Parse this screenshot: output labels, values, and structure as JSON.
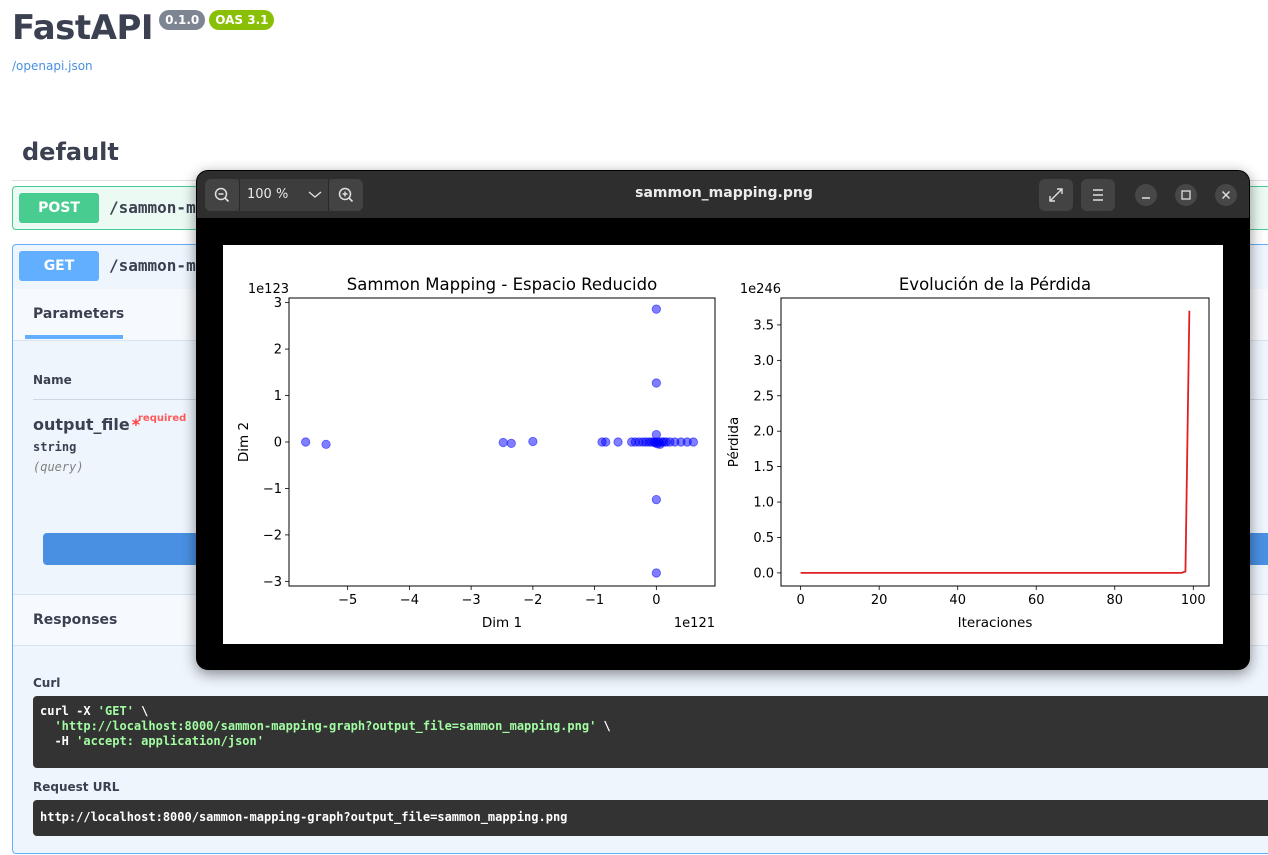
{
  "swagger": {
    "app_title": "FastAPI",
    "version_badge": "0.1.0",
    "oas_badge": "OAS 3.1",
    "openapi_link": "/openapi.json",
    "section_tag": "default",
    "operations": [
      {
        "method": "POST",
        "path": "/sammon-ma"
      },
      {
        "method": "GET",
        "path": "/sammon-ma"
      }
    ],
    "parameters_tab": "Parameters",
    "name_column": "Name",
    "param": {
      "name": "output_file",
      "star": "*",
      "required": "required",
      "type": "string",
      "in": "(query)"
    },
    "responses_title": "Responses",
    "curl_label": "Curl",
    "curl": {
      "l1_cmd": "curl -X ",
      "l1_method": "'GET'",
      "l1_tail": " \\",
      "l2_url": "'http://localhost:8000/sammon-mapping-graph?output_file=sammon_mapping.png'",
      "l2_tail": " \\",
      "l3_flag": "  -H ",
      "l3_header": "'accept: application/json'"
    },
    "request_url_label": "Request URL",
    "request_url": "http://localhost:8000/sammon-mapping-graph?output_file=sammon_mapping.png",
    "colors": {
      "post": "#49cc90",
      "get": "#61affe",
      "execute": "#4990e2"
    }
  },
  "viewer": {
    "title": "sammon_mapping.png",
    "zoom": "100 %",
    "icons": [
      "zoom-out-icon",
      "chevron-down-icon",
      "zoom-in-icon",
      "fullscreen-icon",
      "menu-icon",
      "minimize-icon",
      "maximize-icon",
      "close-icon"
    ]
  },
  "chart_data": [
    {
      "type": "scatter",
      "title": "Sammon Mapping - Espacio Reducido",
      "xlabel": "Dim 1",
      "ylabel": "Dim 2",
      "x_offset_text": "1e121",
      "y_offset_text": "1e123",
      "xlim": [
        -5.95,
        0.95
      ],
      "ylim": [
        -3.1,
        3.1
      ],
      "xticks": [
        -5,
        -4,
        -3,
        -2,
        -1,
        0
      ],
      "xtick_labels": [
        "−5",
        "−4",
        "−3",
        "−2",
        "−1",
        "0"
      ],
      "yticks": [
        -3,
        -2,
        -1,
        0,
        1,
        2,
        3
      ],
      "ytick_labels": [
        "−3",
        "−2",
        "−1",
        "0",
        "1",
        "2",
        "3"
      ],
      "color": "#0000ff",
      "points": [
        [
          -5.68,
          0.0
        ],
        [
          -5.35,
          -0.05
        ],
        [
          -2.48,
          -0.01
        ],
        [
          -2.35,
          -0.03
        ],
        [
          -2.0,
          0.01
        ],
        [
          -0.88,
          0.0
        ],
        [
          -0.82,
          0.0
        ],
        [
          -0.62,
          0.0
        ],
        [
          -0.4,
          0.0
        ],
        [
          -0.34,
          0.0
        ],
        [
          -0.28,
          0.0
        ],
        [
          -0.22,
          0.0
        ],
        [
          -0.17,
          0.0
        ],
        [
          -0.12,
          0.0
        ],
        [
          -0.08,
          0.0
        ],
        [
          -0.04,
          0.0
        ],
        [
          -0.02,
          -0.02
        ],
        [
          0.0,
          0.0
        ],
        [
          0.02,
          -0.04
        ],
        [
          0.04,
          0.0
        ],
        [
          0.06,
          -0.05
        ],
        [
          0.09,
          0.0
        ],
        [
          0.12,
          0.0
        ],
        [
          0.16,
          0.0
        ],
        [
          0.22,
          0.0
        ],
        [
          0.3,
          0.0
        ],
        [
          0.4,
          0.0
        ],
        [
          0.5,
          0.0
        ],
        [
          0.6,
          0.0
        ],
        [
          0.0,
          2.86
        ],
        [
          0.0,
          1.27
        ],
        [
          0.0,
          0.16
        ],
        [
          0.0,
          -1.24
        ],
        [
          0.0,
          -2.82
        ]
      ]
    },
    {
      "type": "line",
      "title": "Evolución de la Pérdida",
      "xlabel": "Iteraciones",
      "ylabel": "Pérdida",
      "y_offset_text": "1e246",
      "xlim": [
        -5,
        104
      ],
      "ylim": [
        -0.185,
        3.88
      ],
      "xticks": [
        0,
        20,
        40,
        60,
        80,
        100
      ],
      "xtick_labels": [
        "0",
        "20",
        "40",
        "60",
        "80",
        "100"
      ],
      "yticks": [
        0.0,
        0.5,
        1.0,
        1.5,
        2.0,
        2.5,
        3.0,
        3.5
      ],
      "ytick_labels": [
        "0.0",
        "0.5",
        "1.0",
        "1.5",
        "2.0",
        "2.5",
        "3.0",
        "3.5"
      ],
      "color": "#e02020",
      "x": [
        0,
        10,
        20,
        30,
        40,
        50,
        60,
        70,
        80,
        90,
        97,
        98,
        99
      ],
      "y": [
        0,
        0,
        0,
        0,
        0,
        0,
        0,
        0,
        0,
        0,
        0,
        0.02,
        3.7
      ]
    }
  ]
}
